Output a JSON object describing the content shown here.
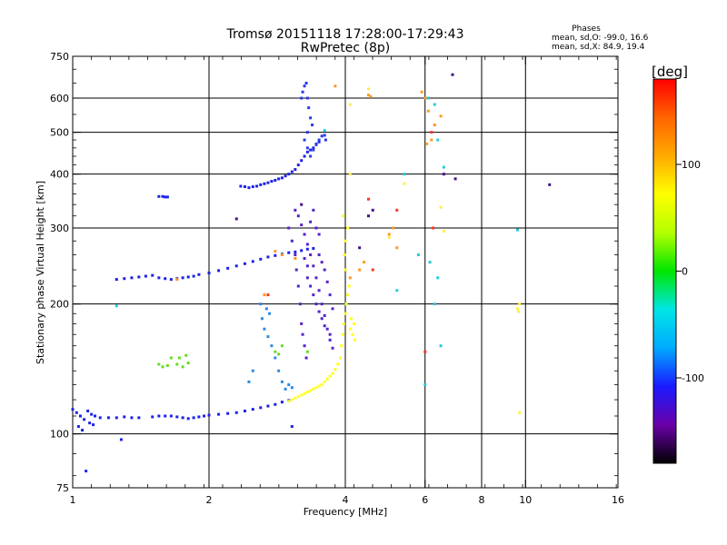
{
  "chart_data": {
    "type": "scatter",
    "title": "Tromsø 20151118 17:28:00-17:29:43",
    "subtitle": "RwPretec (8p)",
    "xlabel": "Frequency [MHz]",
    "ylabel": "Stationary phase Virtual Height [km]",
    "x_scale": "log2",
    "y_scale": "log",
    "xlim": [
      1,
      16
    ],
    "ylim": [
      75,
      750
    ],
    "x_ticks": [
      1,
      2,
      4,
      8,
      16
    ],
    "x_minor_ticks": [
      6,
      10
    ],
    "y_ticks": [
      75,
      100,
      200,
      300,
      400,
      500,
      600,
      750
    ],
    "grid_x": [
      2,
      4,
      6,
      8,
      10
    ],
    "grid_y": [
      100,
      200,
      300,
      400,
      500,
      600
    ],
    "info": {
      "heading": "Phases",
      "line1": "mean, sd,O: -99.0, 16.6",
      "line2": "mean, sd,X:  84.9, 19.4"
    },
    "colorbar": {
      "label": "[deg]",
      "min": -180,
      "max": 180,
      "ticks": [
        100,
        0,
        -100
      ],
      "colors": [
        "#000000",
        "#6a00a8",
        "#1a1aff",
        "#00aaff",
        "#00e6e6",
        "#00e600",
        "#b4ff00",
        "#ffff00",
        "#ffaa00",
        "#ff6400",
        "#ff0000"
      ]
    },
    "series": [
      {
        "color": "#1c22e6",
        "points": [
          [
            1.0,
            114
          ],
          [
            1.02,
            112
          ],
          [
            1.04,
            110
          ],
          [
            1.06,
            108
          ],
          [
            1.08,
            113
          ],
          [
            1.1,
            111
          ],
          [
            1.12,
            110
          ],
          [
            1.15,
            109
          ],
          [
            1.2,
            109
          ],
          [
            1.25,
            109
          ],
          [
            1.3,
            109.5
          ],
          [
            1.35,
            109
          ],
          [
            1.4,
            109
          ],
          [
            1.5,
            109.5
          ],
          [
            1.55,
            110
          ],
          [
            1.6,
            110
          ],
          [
            1.65,
            110
          ],
          [
            1.7,
            109.5
          ],
          [
            1.75,
            109
          ],
          [
            1.8,
            108.5
          ],
          [
            1.85,
            109
          ],
          [
            1.9,
            109.5
          ],
          [
            1.95,
            110
          ],
          [
            2.0,
            110.5
          ],
          [
            2.1,
            111
          ],
          [
            2.2,
            111.5
          ],
          [
            2.3,
            112
          ],
          [
            2.4,
            113
          ],
          [
            2.5,
            114
          ],
          [
            2.6,
            115
          ],
          [
            2.7,
            116
          ],
          [
            2.8,
            117
          ],
          [
            2.9,
            118.5
          ],
          [
            3.0,
            119.5
          ],
          [
            3.05,
            104
          ],
          [
            1.03,
            104
          ],
          [
            1.05,
            102
          ],
          [
            1.09,
            106
          ],
          [
            1.11,
            105
          ],
          [
            1.28,
            97
          ],
          [
            1.07,
            82
          ]
        ]
      },
      {
        "color": "#1c22e6",
        "points": [
          [
            1.25,
            228
          ],
          [
            1.3,
            229
          ],
          [
            1.35,
            230
          ],
          [
            1.4,
            231
          ],
          [
            1.45,
            232
          ],
          [
            1.5,
            233
          ],
          [
            1.55,
            230
          ],
          [
            1.6,
            229
          ],
          [
            1.65,
            228
          ],
          [
            1.7,
            229
          ],
          [
            1.75,
            230
          ],
          [
            1.8,
            231
          ],
          [
            1.85,
            232
          ],
          [
            1.9,
            234
          ],
          [
            2.0,
            236
          ],
          [
            2.1,
            239
          ],
          [
            2.2,
            242
          ],
          [
            2.3,
            245
          ],
          [
            2.4,
            248
          ],
          [
            2.5,
            251
          ],
          [
            2.6,
            254
          ],
          [
            2.7,
            257
          ],
          [
            2.8,
            259
          ],
          [
            2.9,
            261
          ],
          [
            3.0,
            263
          ],
          [
            3.1,
            264
          ],
          [
            3.2,
            266
          ],
          [
            3.3,
            268
          ],
          [
            3.4,
            269
          ]
        ]
      },
      {
        "color": "#1c22e6",
        "points": [
          [
            1.55,
            355
          ],
          [
            1.58,
            355
          ],
          [
            1.6,
            354
          ],
          [
            1.62,
            354
          ],
          [
            2.35,
            375
          ],
          [
            2.4,
            374
          ],
          [
            2.45,
            372
          ],
          [
            2.5,
            374
          ],
          [
            2.55,
            375
          ],
          [
            2.6,
            378
          ],
          [
            2.65,
            380
          ],
          [
            2.7,
            382
          ],
          [
            2.75,
            385
          ],
          [
            2.8,
            387
          ],
          [
            2.85,
            390
          ],
          [
            2.9,
            392
          ],
          [
            2.95,
            396
          ],
          [
            3.0,
            400
          ],
          [
            3.05,
            405
          ],
          [
            3.1,
            410
          ],
          [
            3.15,
            420
          ],
          [
            3.2,
            430
          ],
          [
            3.25,
            440
          ],
          [
            3.3,
            450
          ],
          [
            3.35,
            455
          ],
          [
            3.4,
            460
          ],
          [
            3.45,
            468
          ],
          [
            3.5,
            475
          ]
        ]
      },
      {
        "color": "#2a3ae6",
        "points": [
          [
            3.2,
            600
          ],
          [
            3.22,
            620
          ],
          [
            3.25,
            640
          ],
          [
            3.28,
            650
          ],
          [
            3.3,
            600
          ],
          [
            3.32,
            570
          ],
          [
            3.35,
            540
          ],
          [
            3.38,
            520
          ],
          [
            3.3,
            500
          ],
          [
            3.25,
            480
          ],
          [
            3.3,
            460
          ],
          [
            3.35,
            440
          ],
          [
            3.4,
            455
          ],
          [
            3.45,
            470
          ],
          [
            3.5,
            480
          ],
          [
            3.55,
            490
          ],
          [
            3.6,
            492
          ],
          [
            3.62,
            480
          ]
        ]
      },
      {
        "color": "#5522cc",
        "points": [
          [
            3.0,
            300
          ],
          [
            3.05,
            280
          ],
          [
            3.1,
            260
          ],
          [
            3.12,
            240
          ],
          [
            3.15,
            220
          ],
          [
            3.18,
            200
          ],
          [
            3.2,
            180
          ],
          [
            3.22,
            170
          ],
          [
            3.25,
            160
          ],
          [
            3.28,
            150
          ],
          [
            3.1,
            330
          ],
          [
            3.15,
            320
          ],
          [
            3.2,
            305
          ],
          [
            3.25,
            290
          ],
          [
            3.3,
            275
          ],
          [
            3.35,
            260
          ],
          [
            3.4,
            245
          ],
          [
            3.45,
            230
          ],
          [
            3.5,
            215
          ],
          [
            3.55,
            200
          ],
          [
            3.6,
            188
          ],
          [
            3.65,
            175
          ],
          [
            3.7,
            165
          ],
          [
            3.75,
            158
          ],
          [
            3.3,
            230
          ],
          [
            3.35,
            220
          ],
          [
            3.4,
            210
          ],
          [
            3.45,
            200
          ],
          [
            3.5,
            192
          ],
          [
            3.55,
            185
          ],
          [
            3.6,
            178
          ],
          [
            3.7,
            170
          ],
          [
            3.25,
            255
          ],
          [
            3.3,
            245
          ],
          [
            3.5,
            260
          ],
          [
            3.55,
            250
          ],
          [
            3.6,
            240
          ],
          [
            3.65,
            225
          ],
          [
            3.7,
            210
          ],
          [
            3.75,
            195
          ],
          [
            3.35,
            310
          ],
          [
            3.4,
            330
          ],
          [
            3.45,
            300
          ],
          [
            3.5,
            290
          ]
        ]
      },
      {
        "color": "#2a8ae6",
        "points": [
          [
            2.6,
            200
          ],
          [
            2.62,
            185
          ],
          [
            2.65,
            175
          ],
          [
            2.7,
            168
          ],
          [
            2.75,
            160
          ],
          [
            2.8,
            150
          ],
          [
            2.85,
            140
          ],
          [
            2.9,
            132
          ],
          [
            2.95,
            127
          ],
          [
            2.68,
            195
          ],
          [
            2.72,
            190
          ],
          [
            2.5,
            140
          ],
          [
            2.45,
            132
          ],
          [
            3.0,
            130
          ],
          [
            3.05,
            128
          ]
        ]
      },
      {
        "color": "#ffff22",
        "points": [
          [
            3.0,
            119
          ],
          [
            3.05,
            120
          ],
          [
            3.1,
            121
          ],
          [
            3.15,
            122
          ],
          [
            3.2,
            123
          ],
          [
            3.25,
            124
          ],
          [
            3.3,
            125
          ],
          [
            3.35,
            126
          ],
          [
            3.4,
            127
          ],
          [
            3.45,
            128
          ],
          [
            3.5,
            129
          ],
          [
            3.55,
            130
          ],
          [
            3.6,
            132
          ],
          [
            3.65,
            134
          ],
          [
            3.7,
            136
          ],
          [
            3.75,
            138
          ],
          [
            3.8,
            141
          ],
          [
            3.85,
            145
          ],
          [
            3.9,
            150
          ],
          [
            3.92,
            160
          ],
          [
            3.95,
            170
          ],
          [
            3.97,
            180
          ],
          [
            4.0,
            190
          ],
          [
            4.02,
            200
          ],
          [
            4.05,
            210
          ],
          [
            4.08,
            220
          ],
          [
            4.0,
            240
          ],
          [
            3.98,
            260
          ],
          [
            4.0,
            280
          ],
          [
            4.05,
            300
          ],
          [
            3.95,
            320
          ],
          [
            4.1,
            175
          ],
          [
            4.15,
            170
          ],
          [
            4.2,
            165
          ],
          [
            4.12,
            185
          ],
          [
            4.18,
            180
          ]
        ]
      },
      {
        "color": "#66dd22",
        "points": [
          [
            1.55,
            145
          ],
          [
            1.58,
            143
          ],
          [
            1.62,
            144
          ],
          [
            1.7,
            145
          ],
          [
            1.75,
            143
          ],
          [
            1.8,
            146
          ],
          [
            1.65,
            150
          ],
          [
            1.72,
            150
          ],
          [
            1.78,
            152
          ],
          [
            2.8,
            155
          ],
          [
            2.85,
            153
          ],
          [
            2.9,
            160
          ],
          [
            3.3,
            155
          ]
        ]
      },
      {
        "color": "#ff9922",
        "points": [
          [
            4.5,
            610
          ],
          [
            4.55,
            605
          ],
          [
            5.9,
            620
          ],
          [
            6.0,
            600
          ],
          [
            6.1,
            560
          ],
          [
            6.3,
            520
          ],
          [
            6.2,
            480
          ],
          [
            6.05,
            470
          ],
          [
            6.5,
            545
          ],
          [
            3.8,
            640
          ],
          [
            4.1,
            230
          ],
          [
            4.3,
            240
          ],
          [
            4.4,
            250
          ],
          [
            5.0,
            290
          ],
          [
            5.1,
            300
          ],
          [
            2.8,
            265
          ],
          [
            3.1,
            255
          ],
          [
            2.65,
            210
          ],
          [
            1.7,
            228
          ],
          [
            2.9,
            260
          ],
          [
            5.2,
            270
          ]
        ]
      },
      {
        "color": "#22ccdd",
        "points": [
          [
            6.1,
            600
          ],
          [
            6.3,
            580
          ],
          [
            6.15,
            250
          ],
          [
            5.8,
            260
          ],
          [
            6.4,
            230
          ],
          [
            6.5,
            160
          ],
          [
            6.0,
            130
          ],
          [
            5.2,
            215
          ],
          [
            6.6,
            415
          ],
          [
            5.4,
            400
          ],
          [
            9.6,
            297
          ],
          [
            6.4,
            480
          ],
          [
            6.3,
            200
          ],
          [
            1.25,
            198
          ],
          [
            3.6,
            505
          ]
        ]
      },
      {
        "color": "#ff3322",
        "points": [
          [
            6.2,
            500
          ],
          [
            6.25,
            300
          ],
          [
            4.5,
            350
          ],
          [
            6.0,
            155
          ],
          [
            2.7,
            210
          ],
          [
            5.2,
            330
          ],
          [
            4.6,
            240
          ]
        ]
      },
      {
        "color": "#441188",
        "points": [
          [
            2.3,
            315
          ],
          [
            4.6,
            330
          ],
          [
            4.3,
            270
          ],
          [
            6.6,
            400
          ],
          [
            7.0,
            390
          ],
          [
            11.3,
            378
          ],
          [
            6.9,
            680
          ],
          [
            4.5,
            320
          ],
          [
            3.2,
            340
          ]
        ]
      },
      {
        "color": "#ffee44",
        "points": [
          [
            9.6,
            195
          ],
          [
            9.7,
            200
          ],
          [
            9.65,
            192
          ],
          [
            9.7,
            112
          ],
          [
            4.1,
            580
          ],
          [
            4.5,
            630
          ],
          [
            5.0,
            285
          ],
          [
            5.4,
            380
          ],
          [
            6.5,
            335
          ],
          [
            6.6,
            295
          ],
          [
            4.1,
            400
          ]
        ]
      }
    ]
  }
}
